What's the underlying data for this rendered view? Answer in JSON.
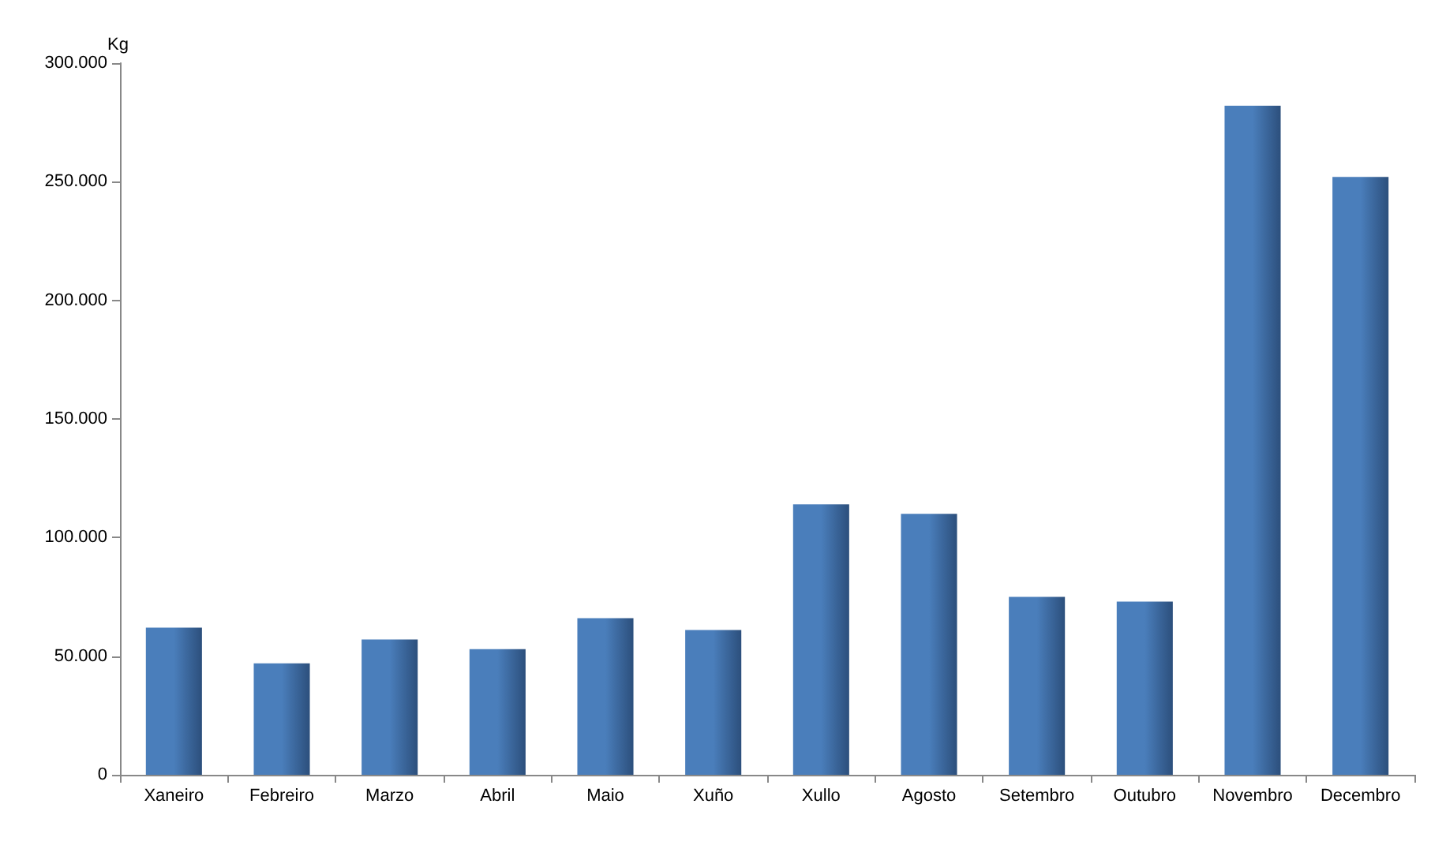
{
  "chart_data": {
    "type": "bar",
    "ylabel": "Kg",
    "categories": [
      "Xaneiro",
      "Febreiro",
      "Marzo",
      "Abril",
      "Maio",
      "Xuño",
      "Xullo",
      "Agosto",
      "Setembro",
      "Outubro",
      "Novembro",
      "Decembro"
    ],
    "values": [
      62000,
      47000,
      57000,
      53000,
      66000,
      61000,
      114000,
      110000,
      75000,
      73000,
      282000,
      252000
    ],
    "color": "#4a7ebb",
    "ylim": [
      0,
      300000
    ],
    "yticks": [
      {
        "value": 0,
        "label": "0"
      },
      {
        "value": 50000,
        "label": "50.000"
      },
      {
        "value": 100000,
        "label": "100.000"
      },
      {
        "value": 150000,
        "label": "150.000"
      },
      {
        "value": 200000,
        "label": "200.000"
      },
      {
        "value": 250000,
        "label": "250.000"
      },
      {
        "value": 300000,
        "label": "300.000"
      }
    ],
    "grid": false
  }
}
